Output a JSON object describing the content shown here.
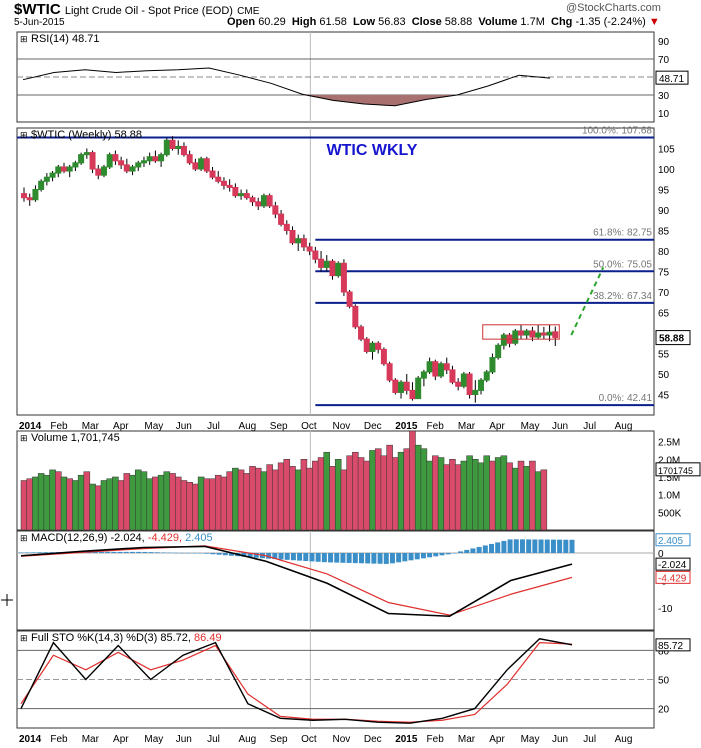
{
  "header": {
    "symbol": "$WTIC",
    "name": "Light Crude Oil - Spot Price (EOD)",
    "exchange": "CME",
    "watermark": "@StockCharts.com",
    "date": "5-Jun-2015",
    "open_label": "Open",
    "open": "60.29",
    "high_label": "High",
    "high": "61.58",
    "low_label": "Low",
    "low": "56.83",
    "close_label": "Close",
    "close": "58.88",
    "volume_label": "Volume",
    "volume": "1.7M",
    "chg_label": "Chg",
    "chg": "-1.35 (-2.24%)",
    "chg_arrow": "▼"
  },
  "colors": {
    "up": "#2e8b2e",
    "down": "#d6395a",
    "vol_up": "#3f9a3f",
    "vol_down": "#d94b6a",
    "macd_hist": "#3b8fc8",
    "fib_line": "#0a1f8c",
    "signal": "#e0302f",
    "rsi_fill": "#a8706e"
  },
  "chart_data": [
    {
      "type": "line",
      "panel": "rsi",
      "title": "RSI(14) 48.71",
      "last_label": "48.71",
      "yticks": [
        10,
        30,
        50,
        70,
        90
      ],
      "ylim": [
        0,
        100
      ],
      "overbought": 70,
      "oversold": 30,
      "x": [
        "2014-01",
        "2014-02",
        "2014-03",
        "2014-04",
        "2014-05",
        "2014-06",
        "2014-07",
        "2014-08",
        "2014-09",
        "2014-10",
        "2014-11",
        "2014-12",
        "2015-01",
        "2015-02",
        "2015-03",
        "2015-04",
        "2015-05",
        "2015-06"
      ],
      "values": [
        47,
        55,
        58,
        55,
        57,
        58,
        60,
        52,
        43,
        31,
        24,
        20,
        18,
        25,
        30,
        40,
        52,
        48.71
      ]
    },
    {
      "type": "candlestick",
      "panel": "price",
      "title": "$WTIC (Weekly) 58.88",
      "annotation": "WTIC WKLY",
      "last_label": "58.88",
      "yticks": [
        45,
        50,
        55,
        60,
        65,
        70,
        75,
        80,
        85,
        90,
        95,
        100,
        105
      ],
      "ylim": [
        40,
        110
      ],
      "fib_levels": [
        {
          "label": "100.0%: 107.68",
          "value": 107.68
        },
        {
          "label": "61.8%: 82.75",
          "value": 82.75
        },
        {
          "label": "50.0%: 75.05",
          "value": 75.05
        },
        {
          "label": "38.2%: 67.34",
          "value": 67.34
        },
        {
          "label": "0.0%: 42.41",
          "value": 42.41
        }
      ],
      "x_axis_labels": [
        "2014",
        "Feb",
        "Mar",
        "Apr",
        "May",
        "Jun",
        "Jul",
        "Aug",
        "Sep",
        "Oct",
        "Nov",
        "Dec",
        "2015",
        "Feb",
        "Mar",
        "Apr",
        "May",
        "Jun",
        "Jul",
        "Aug"
      ],
      "candles": [
        [
          94,
          95.5,
          92,
          93
        ],
        [
          93,
          94,
          91,
          92.5
        ],
        [
          92.5,
          96,
          92,
          95
        ],
        [
          95,
          97.5,
          94.5,
          97
        ],
        [
          97,
          99,
          96,
          98
        ],
        [
          98,
          99.5,
          97,
          99
        ],
        [
          99,
          101,
          98,
          100.5
        ],
        [
          100.5,
          101.5,
          99,
          99.5
        ],
        [
          99.5,
          101,
          98,
          100.5
        ],
        [
          100.5,
          102,
          99.5,
          101.5
        ],
        [
          101.5,
          104,
          101,
          103.5
        ],
        [
          103.5,
          105,
          102.5,
          104
        ],
        [
          104,
          104.5,
          99,
          100
        ],
        [
          100,
          101,
          97.5,
          98.5
        ],
        [
          98.5,
          101,
          98,
          100.5
        ],
        [
          100.5,
          104,
          100,
          103.5
        ],
        [
          103.5,
          104.5,
          101,
          102
        ],
        [
          102,
          103,
          100,
          101
        ],
        [
          101,
          102.5,
          99,
          99.5
        ],
        [
          99.5,
          101,
          98.5,
          100.5
        ],
        [
          100.5,
          102,
          99.5,
          101.5
        ],
        [
          101.5,
          103,
          100.5,
          102
        ],
        [
          102,
          104,
          101,
          103
        ],
        [
          103,
          104.5,
          101.5,
          102
        ],
        [
          102,
          104,
          100.5,
          103.5
        ],
        [
          103.5,
          107.5,
          103,
          107
        ],
        [
          107,
          108,
          104.5,
          105
        ],
        [
          105,
          107,
          103.5,
          105.5
        ],
        [
          105.5,
          106.5,
          103,
          103.5
        ],
        [
          103.5,
          104.5,
          101,
          101.5
        ],
        [
          101.5,
          102.5,
          99.5,
          100
        ],
        [
          100,
          103,
          99.5,
          102.5
        ],
        [
          102.5,
          103,
          99,
          99.5
        ],
        [
          99.5,
          100.5,
          97.5,
          98
        ],
        [
          98,
          99.5,
          96.5,
          97
        ],
        [
          97,
          98,
          95,
          96
        ],
        [
          96,
          97.5,
          94.5,
          95.5
        ],
        [
          95.5,
          96.5,
          93,
          93.5
        ],
        [
          93.5,
          95,
          92.5,
          94
        ],
        [
          94,
          95,
          92.5,
          93
        ],
        [
          93,
          93.5,
          91,
          92
        ],
        [
          92,
          93,
          90,
          91
        ],
        [
          91,
          94,
          90.5,
          93.5
        ],
        [
          93.5,
          94,
          90.5,
          91
        ],
        [
          91,
          92,
          88,
          89
        ],
        [
          89,
          90,
          86,
          86.5
        ],
        [
          86.5,
          87.5,
          84,
          85
        ],
        [
          85,
          86,
          81.5,
          82
        ],
        [
          82,
          84,
          80,
          83
        ],
        [
          83,
          84,
          80,
          81
        ],
        [
          81,
          82,
          79,
          80
        ],
        [
          80,
          81,
          77,
          78
        ],
        [
          78,
          80,
          75,
          76
        ],
        [
          76,
          79,
          75,
          77.5
        ],
        [
          77.5,
          78,
          73,
          74
        ],
        [
          74,
          77.5,
          73.5,
          77
        ],
        [
          77,
          78,
          69,
          70
        ],
        [
          70,
          70.5,
          66,
          66.5
        ],
        [
          66.5,
          67,
          61,
          61.5
        ],
        [
          61.5,
          62,
          58,
          58.5
        ],
        [
          58.5,
          59,
          55,
          55.5
        ],
        [
          55.5,
          58,
          53.5,
          57.5
        ],
        [
          57.5,
          58,
          55,
          56
        ],
        [
          56,
          56.5,
          52,
          52.5
        ],
        [
          52.5,
          53,
          48,
          48.5
        ],
        [
          48.5,
          49,
          45,
          45.5
        ],
        [
          45.5,
          48.5,
          44,
          48
        ],
        [
          48,
          50,
          45,
          46
        ],
        [
          46,
          48,
          43.5,
          44
        ],
        [
          44,
          49.5,
          44,
          49
        ],
        [
          49,
          51,
          47,
          50.5
        ],
        [
          50.5,
          54,
          50,
          53
        ],
        [
          53,
          53.5,
          48.5,
          49.5
        ],
        [
          49.5,
          53,
          49,
          52.5
        ],
        [
          52.5,
          54,
          50,
          51
        ],
        [
          51,
          52,
          47.5,
          48
        ],
        [
          48,
          49,
          46,
          47
        ],
        [
          47,
          50.5,
          46.5,
          50
        ],
        [
          50,
          50.5,
          44,
          45
        ],
        [
          45,
          48.5,
          43,
          46
        ],
        [
          46,
          49,
          45,
          48.5
        ],
        [
          48.5,
          51,
          48,
          50.5
        ],
        [
          50.5,
          55,
          50,
          54
        ],
        [
          54,
          57.5,
          53.5,
          57
        ],
        [
          57,
          60,
          56,
          59.5
        ],
        [
          59.5,
          60,
          56.5,
          57.5
        ],
        [
          57.5,
          61,
          57,
          60.5
        ],
        [
          60.5,
          62,
          58.5,
          59.5
        ],
        [
          59.5,
          61,
          58.5,
          60.5
        ],
        [
          60.5,
          61.5,
          58,
          59
        ],
        [
          59,
          62,
          58.5,
          60
        ],
        [
          60,
          61.5,
          58.5,
          59.5
        ],
        [
          59.5,
          62,
          58,
          60.2
        ],
        [
          60.29,
          61.58,
          56.83,
          58.88
        ]
      ]
    },
    {
      "type": "bar",
      "panel": "volume",
      "title": "Volume 1,701,745",
      "last_label": "1701745",
      "ytick_labels": [
        "500K",
        "1.0M",
        "1.5M",
        "2.0M",
        "2.5M"
      ],
      "yticks": [
        500000,
        1000000,
        1500000,
        2000000,
        2500000
      ],
      "ylim": [
        0,
        2800000
      ],
      "values": [
        1400000,
        1450000,
        1500000,
        1600000,
        1550000,
        1700000,
        1650000,
        1500000,
        1450000,
        1400000,
        1550000,
        1650000,
        1300000,
        1250000,
        1400000,
        1450000,
        1500000,
        1400000,
        1600000,
        1550000,
        1700000,
        1650000,
        1450000,
        1500000,
        1550000,
        1650000,
        1600000,
        1500000,
        1400000,
        1350000,
        1300000,
        1500000,
        1450000,
        1450000,
        1550000,
        1500000,
        1650000,
        1750000,
        1700000,
        1600000,
        1800000,
        1750000,
        1650000,
        1850000,
        1700000,
        1900000,
        2000000,
        1800000,
        1700000,
        2000000,
        1750000,
        1950000,
        2050000,
        2200000,
        1800000,
        2000000,
        1700000,
        2100000,
        2200000,
        2050000,
        1950000,
        2250000,
        2300000,
        2100000,
        2400000,
        2050000,
        2200000,
        2300000,
        2800000,
        2400000,
        2300000,
        1950000,
        2100000,
        2050000,
        1850000,
        2000000,
        1850000,
        1950000,
        2100000,
        2000000,
        1900000,
        2100000,
        1950000,
        2050000,
        2100000,
        1900000,
        1750000,
        1950000,
        1800000,
        1950000,
        1650000,
        1701745
      ],
      "up": [
        false,
        false,
        true,
        true,
        true,
        true,
        false,
        true,
        false,
        true,
        true,
        false,
        true,
        false,
        true,
        true,
        true,
        false,
        false,
        true,
        true,
        true,
        true,
        false,
        true,
        true,
        false,
        false,
        false,
        false,
        false,
        true,
        false,
        false,
        false,
        false,
        false,
        true,
        false,
        false,
        false,
        false,
        true,
        false,
        false,
        false,
        false,
        false,
        true,
        false,
        false,
        false,
        false,
        true,
        false,
        true,
        false,
        false,
        false,
        false,
        false,
        true,
        false,
        false,
        false,
        false,
        true,
        false,
        false,
        true,
        true,
        true,
        false,
        true,
        false,
        false,
        false,
        true,
        true,
        true,
        true,
        true,
        false,
        true,
        true,
        false,
        true,
        false,
        true,
        false,
        true,
        false
      ]
    },
    {
      "type": "line",
      "panel": "macd",
      "title": "MACD(12,26,9)",
      "values_label": [
        "-2.024",
        "-4.429",
        "2.405"
      ],
      "last_labels": [
        "2.405",
        "-2.024",
        "-4.429"
      ],
      "yticks": [
        -10,
        -5,
        0
      ],
      "ylim": [
        -14,
        4
      ],
      "x": [
        "2014-01",
        "2014-03",
        "2014-05",
        "2014-07",
        "2014-09",
        "2014-11",
        "2015-01",
        "2015-03",
        "2015-05",
        "2015-06"
      ],
      "series": [
        {
          "name": "MACD",
          "values": [
            -0.5,
            0.3,
            1.0,
            1.2,
            -1.5,
            -5.5,
            -11.0,
            -11.5,
            -5.0,
            -2.024
          ]
        },
        {
          "name": "Signal",
          "values": [
            -0.6,
            0.1,
            0.8,
            1.3,
            -0.5,
            -3.8,
            -9.0,
            -11.3,
            -7.5,
            -4.429
          ]
        },
        {
          "name": "Histogram",
          "values": [
            0.1,
            0.2,
            0.2,
            -0.1,
            -1.0,
            -1.7,
            -2.0,
            -0.2,
            2.5,
            2.405
          ]
        }
      ]
    },
    {
      "type": "line",
      "panel": "sto",
      "title": "Full STO %K(14,3) %D(3)",
      "values_label": [
        "85.72",
        "86.49"
      ],
      "last_label": "85.72",
      "yticks": [
        20,
        50,
        80
      ],
      "ylim": [
        0,
        100
      ],
      "x": [
        "2014-01",
        "2014-02",
        "2014-03",
        "2014-04",
        "2014-05",
        "2014-06",
        "2014-07",
        "2014-08",
        "2014-09",
        "2014-10",
        "2014-11",
        "2014-12",
        "2015-01",
        "2015-02",
        "2015-03",
        "2015-04",
        "2015-05",
        "2015-06"
      ],
      "series": [
        {
          "name": "%K",
          "values": [
            20,
            88,
            50,
            85,
            50,
            75,
            88,
            25,
            10,
            8,
            9,
            6,
            5,
            10,
            20,
            60,
            92,
            85.72
          ]
        },
        {
          "name": "%D",
          "values": [
            25,
            75,
            60,
            78,
            60,
            70,
            85,
            35,
            12,
            9,
            9,
            7,
            6,
            8,
            14,
            45,
            88,
            86.49
          ]
        }
      ]
    }
  ]
}
